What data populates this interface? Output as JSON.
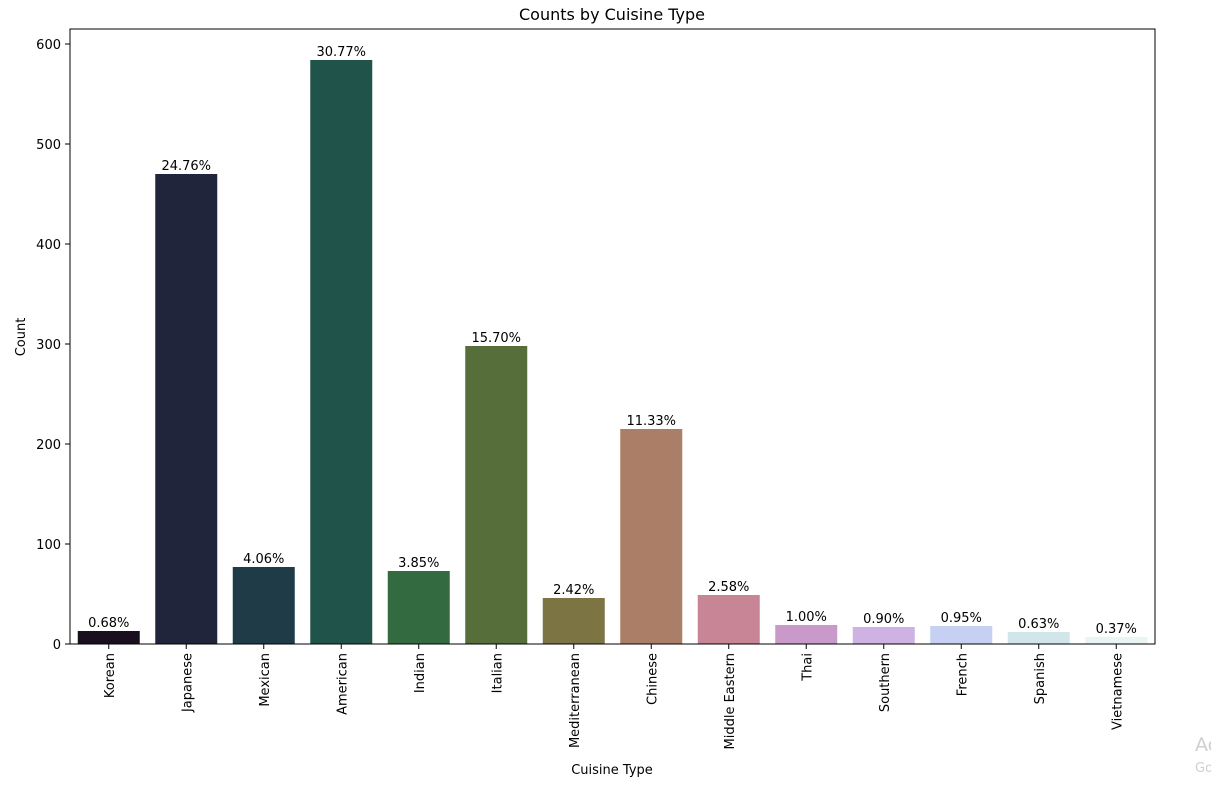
{
  "chart_data": {
    "type": "bar",
    "title": "Counts by Cuisine Type",
    "xlabel": "Cuisine Type",
    "ylabel": "Count",
    "ylim": [
      0,
      615
    ],
    "yticks": [
      0,
      100,
      200,
      300,
      400,
      500,
      600
    ],
    "grid": false,
    "categories": [
      "Korean",
      "Japanese",
      "Mexican",
      "American",
      "Indian",
      "Italian",
      "Mediterranean",
      "Chinese",
      "Middle Eastern",
      "Thai",
      "Southern",
      "French",
      "Spanish",
      "Vietnamese"
    ],
    "values": [
      13,
      470,
      77,
      584,
      73,
      298,
      46,
      215,
      49,
      19,
      17,
      18,
      12,
      7
    ],
    "data_labels": [
      "0.68%",
      "24.76%",
      "4.06%",
      "30.77%",
      "3.85%",
      "15.70%",
      "2.42%",
      "11.33%",
      "2.58%",
      "1.00%",
      "0.90%",
      "0.95%",
      "0.63%",
      "0.37%"
    ],
    "colors": [
      "#1a0f1f",
      "#21253b",
      "#1f3b48",
      "#20544a",
      "#336a3f",
      "#566f3a",
      "#7d7443",
      "#ab7e67",
      "#c78595",
      "#c999c9",
      "#cdb2e3",
      "#c5d0f2",
      "#d1e5eb",
      "#e9f5f4"
    ]
  },
  "watermark": {
    "line1": "Ac",
    "line2": "Go"
  }
}
